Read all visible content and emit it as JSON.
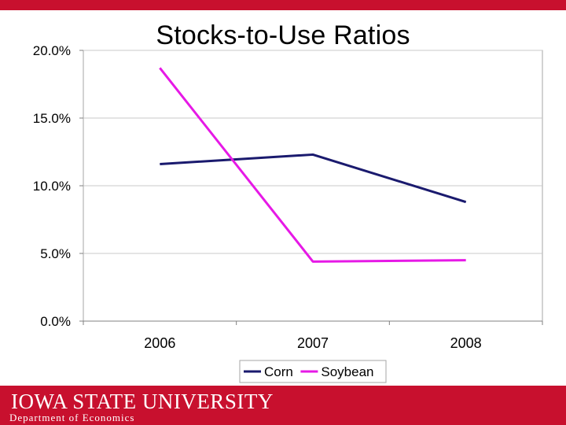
{
  "slide": {
    "title": "Stocks-to-Use Ratios",
    "footer_logo": "IOWA STATE UNIVERSITY",
    "footer_dept": "Department of Economics"
  },
  "chart_data": {
    "type": "line",
    "title": "Stocks-to-Use Ratios",
    "x": [
      "2006",
      "2007",
      "2008"
    ],
    "series": [
      {
        "name": "Corn",
        "color": "#1a1a6e",
        "values": [
          11.6,
          12.3,
          8.8
        ]
      },
      {
        "name": "Soybean",
        "color": "#e619e6",
        "values": [
          18.7,
          4.4,
          4.5
        ]
      }
    ],
    "yticks": [
      "0.0%",
      "5.0%",
      "10.0%",
      "15.0%",
      "20.0%"
    ],
    "ylim": [
      0,
      20
    ],
    "y_unit": "%",
    "grid": true,
    "legend": "bottom"
  }
}
